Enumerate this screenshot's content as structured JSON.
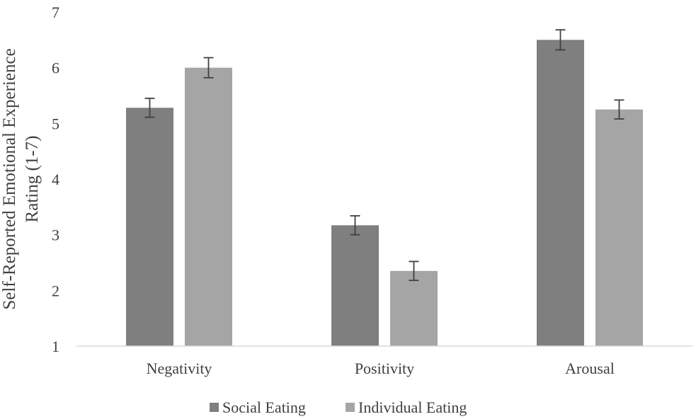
{
  "chart_data": {
    "type": "bar",
    "title": "",
    "xlabel": "",
    "ylabel_lines": [
      "Self-Reported Emotional Experience",
      "Rating (1-7)"
    ],
    "categories": [
      "Negativity",
      "Positivity",
      "Arousal"
    ],
    "ylim": [
      1,
      7
    ],
    "yticks": [
      1,
      2,
      3,
      4,
      5,
      6,
      7
    ],
    "grid": false,
    "legend_position": "bottom",
    "series": [
      {
        "name": "Social Eating",
        "color": "#7f7f7f",
        "values": [
          5.28,
          3.17,
          6.5
        ],
        "errors": [
          0.17,
          0.17,
          0.18
        ]
      },
      {
        "name": "Individual Eating",
        "color": "#a5a5a5",
        "values": [
          6.0,
          2.35,
          5.25
        ],
        "errors": [
          0.18,
          0.17,
          0.17
        ]
      }
    ]
  }
}
